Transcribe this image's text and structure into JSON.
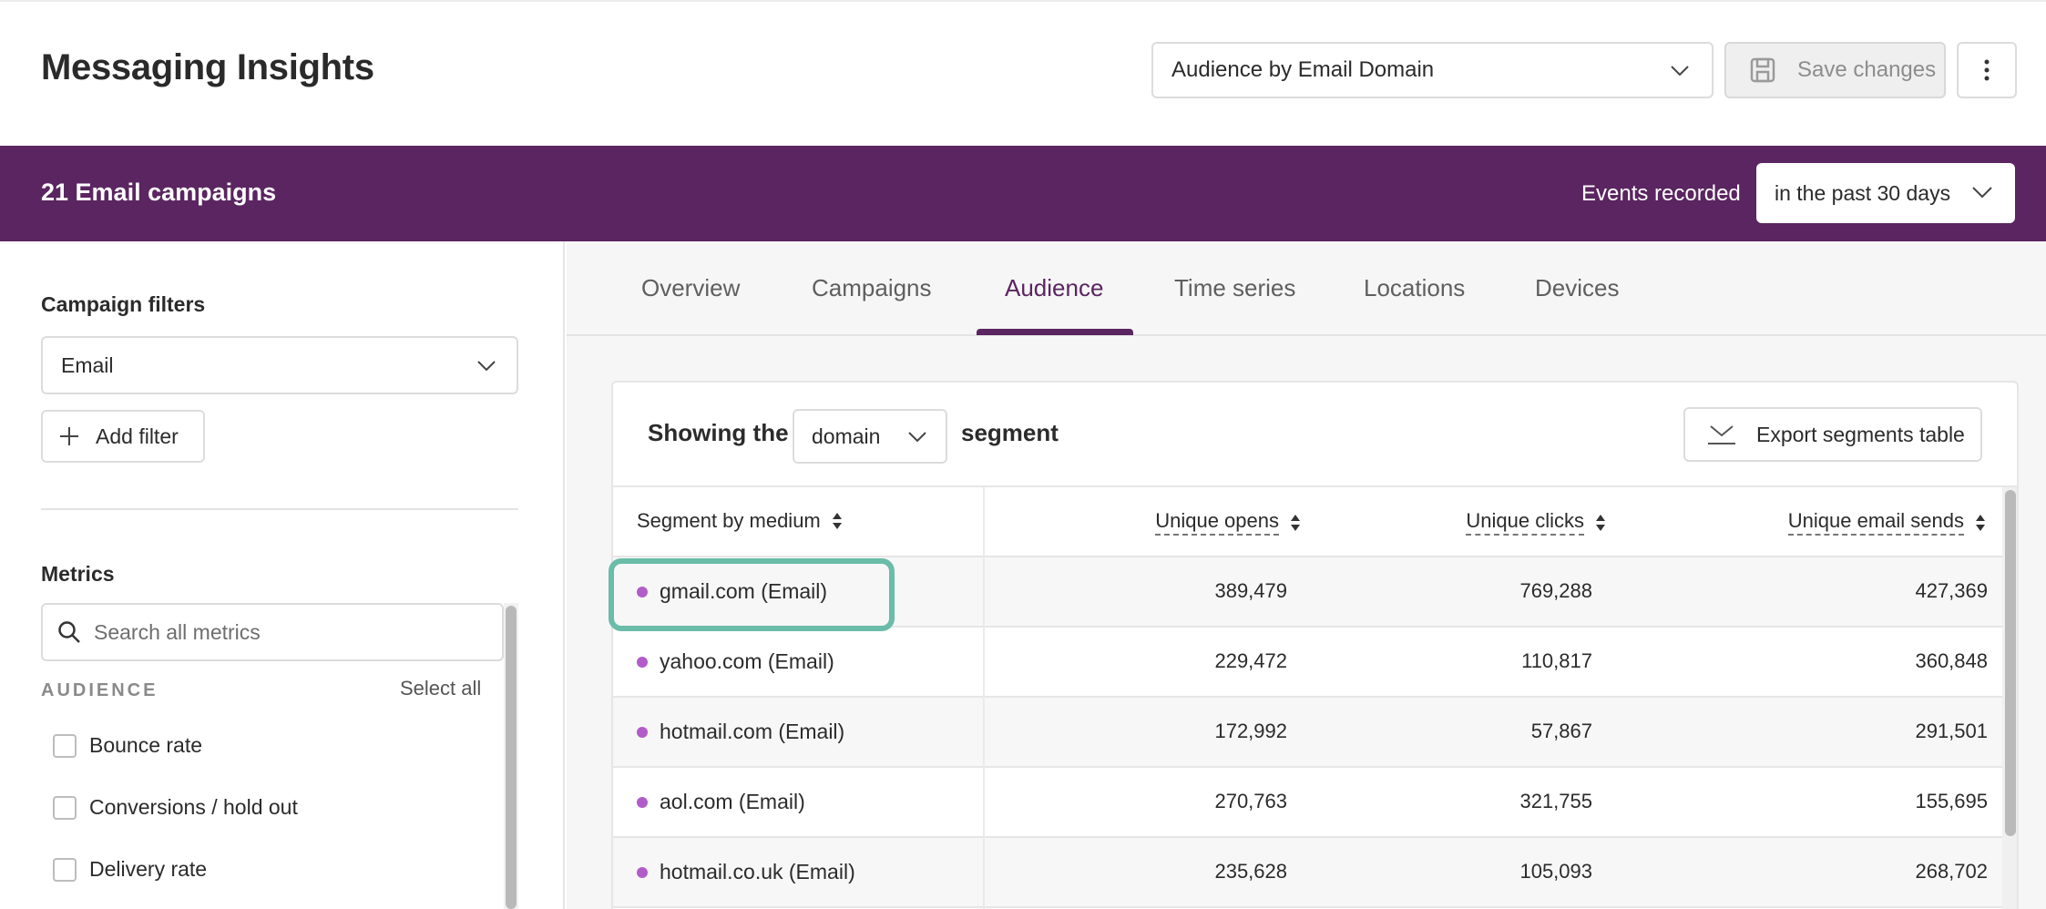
{
  "header": {
    "title": "Messaging Insights",
    "view_select": "Audience by Email Domain",
    "save_label": "Save changes"
  },
  "band": {
    "title": "21 Email campaigns",
    "events_label": "Events recorded",
    "range_value": "in the past 30 days"
  },
  "sidebar": {
    "campaign_filters_label": "Campaign filters",
    "filter_value": "Email",
    "add_filter_label": "Add filter",
    "metrics_label": "Metrics",
    "search_placeholder": "Search all metrics",
    "group_label": "AUDIENCE",
    "select_all_label": "Select all",
    "metrics": [
      {
        "label": "Bounce rate",
        "checked": false
      },
      {
        "label": "Conversions / hold out",
        "checked": false
      },
      {
        "label": "Delivery rate",
        "checked": false
      }
    ]
  },
  "tabs": [
    {
      "label": "Overview",
      "active": false
    },
    {
      "label": "Campaigns",
      "active": false
    },
    {
      "label": "Audience",
      "active": true
    },
    {
      "label": "Time series",
      "active": false
    },
    {
      "label": "Locations",
      "active": false
    },
    {
      "label": "Devices",
      "active": false
    }
  ],
  "segment": {
    "prefix": "Showing the",
    "selected": "domain",
    "suffix": "segment",
    "export_label": "Export segments table"
  },
  "table": {
    "columns": [
      "Segment by medium",
      "Unique opens",
      "Unique clicks",
      "Unique email sends"
    ],
    "rows": [
      {
        "segment": "gmail.com (Email)",
        "opens": "389,479",
        "clicks": "769,288",
        "sends": "427,369"
      },
      {
        "segment": "yahoo.com (Email)",
        "opens": "229,472",
        "clicks": "110,817",
        "sends": "360,848"
      },
      {
        "segment": "hotmail.com (Email)",
        "opens": "172,992",
        "clicks": "57,867",
        "sends": "291,501"
      },
      {
        "segment": "aol.com (Email)",
        "opens": "270,763",
        "clicks": "321,755",
        "sends": "155,695"
      },
      {
        "segment": "hotmail.co.uk (Email)",
        "opens": "235,628",
        "clicks": "105,093",
        "sends": "268,702"
      }
    ]
  },
  "colors": {
    "brand_purple": "#5a2560",
    "segment_dot": "#b25cc9",
    "highlight_ring": "#6bbca8"
  }
}
